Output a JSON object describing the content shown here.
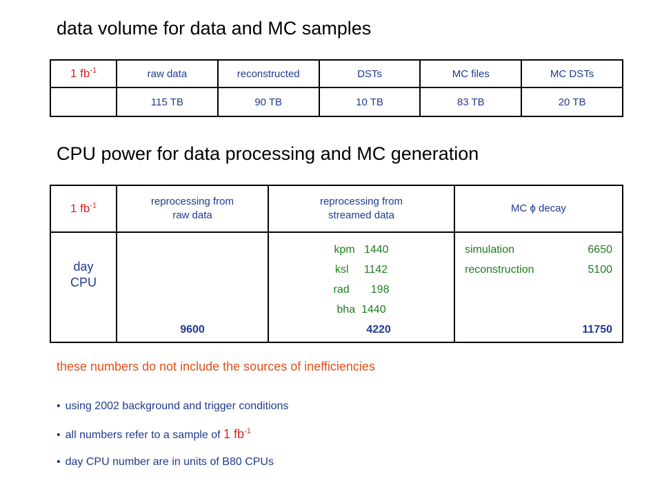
{
  "title1": "data volume for data and MC samples",
  "title2": "CPU power for data processing and MC generation",
  "fb": {
    "base": "1 fb",
    "exp": "-1"
  },
  "table1": {
    "headers": [
      "raw data",
      "reconstructed",
      "DSTs",
      "MC files",
      "MC DSTs"
    ],
    "values": [
      "115 TB",
      "90 TB",
      "10 TB",
      "83 TB",
      "20 TB"
    ]
  },
  "table2": {
    "headers": {
      "raw_line1": "reprocessing from",
      "raw_line2": "raw data",
      "stream_line1": "reprocessing from",
      "stream_line2": "streamed data",
      "mc_prefix": "MC ",
      "mc_symbol": "ϕ",
      "mc_suffix": " decay"
    },
    "row_label_line1": "day",
    "row_label_line2": "CPU",
    "raw_total": "9600",
    "streams": [
      {
        "name": "kpm",
        "value": "1440"
      },
      {
        "name": "ksl",
        "value": "1142"
      },
      {
        "name": "rad",
        "value": "198"
      },
      {
        "name": "bha",
        "value": "1440"
      }
    ],
    "stream_total": "4220",
    "mc": [
      {
        "name": "simulation",
        "value": "6650"
      },
      {
        "name": "reconstruction",
        "value": "5100"
      }
    ],
    "mc_total": "11750"
  },
  "note": "these numbers do not include the sources of inefficiencies",
  "bullets": {
    "b1": "using 2002 background and trigger conditions",
    "b2_prefix": "all numbers refer to a sample of ",
    "b3": "day CPU number are in units of B80 CPUs"
  },
  "colors": {
    "title": "#000000",
    "header_blue": "#1f3a8f",
    "green": "#1d7d1d",
    "red": "#dd2222",
    "orange": "#e0501a"
  }
}
